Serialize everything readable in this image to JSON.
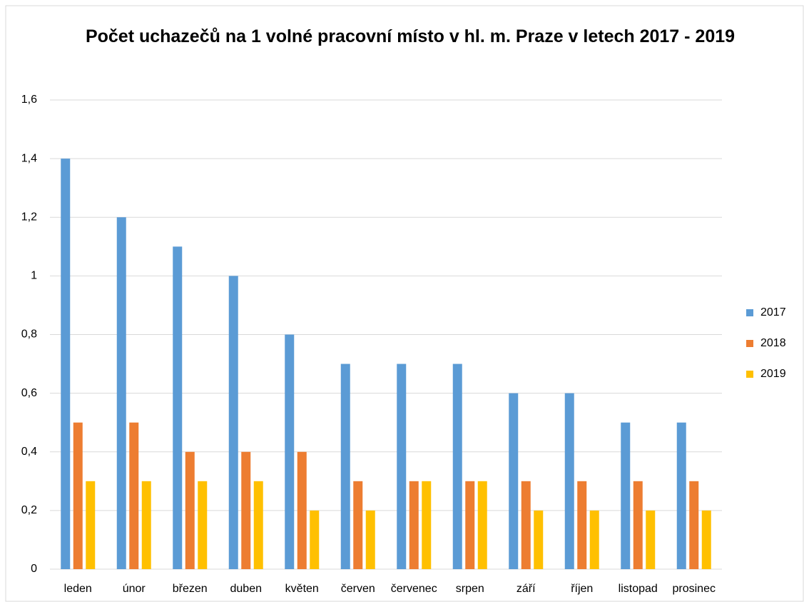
{
  "chart_data": {
    "type": "bar",
    "title": "Počet uchazečů na 1 volné pracovní místo v hl. m. Praze v letech 2017 - 2019",
    "categories": [
      "leden",
      "únor",
      "březen",
      "duben",
      "květen",
      "červen",
      "červenec",
      "srpen",
      "září",
      "říjen",
      "listopad",
      "prosinec"
    ],
    "series": [
      {
        "name": "2017",
        "color": "#5b9bd5",
        "values": [
          1.4,
          1.2,
          1.1,
          1.0,
          0.8,
          0.7,
          0.7,
          0.7,
          0.6,
          0.6,
          0.5,
          0.5
        ]
      },
      {
        "name": "2018",
        "color": "#ed7d31",
        "values": [
          0.5,
          0.5,
          0.4,
          0.4,
          0.4,
          0.3,
          0.3,
          0.3,
          0.3,
          0.3,
          0.3,
          0.3
        ]
      },
      {
        "name": "2019",
        "color": "#ffc000",
        "values": [
          0.3,
          0.3,
          0.3,
          0.3,
          0.2,
          0.2,
          0.3,
          0.3,
          0.2,
          0.2,
          0.2,
          0.2
        ]
      }
    ],
    "ylim": [
      0,
      1.6
    ],
    "yticks": [
      0,
      {
        "value": 0.2,
        "label": "0,2"
      },
      {
        "value": 0.4,
        "label": "0,4"
      },
      {
        "value": 0.6,
        "label": "0,6"
      },
      {
        "value": 0.8,
        "label": "0,8"
      },
      1,
      {
        "value": 1.2,
        "label": "1,2"
      },
      {
        "value": 1.4,
        "label": "1,4"
      },
      {
        "value": 1.6,
        "label": "1,6"
      }
    ],
    "grid": true,
    "legend": "right"
  }
}
